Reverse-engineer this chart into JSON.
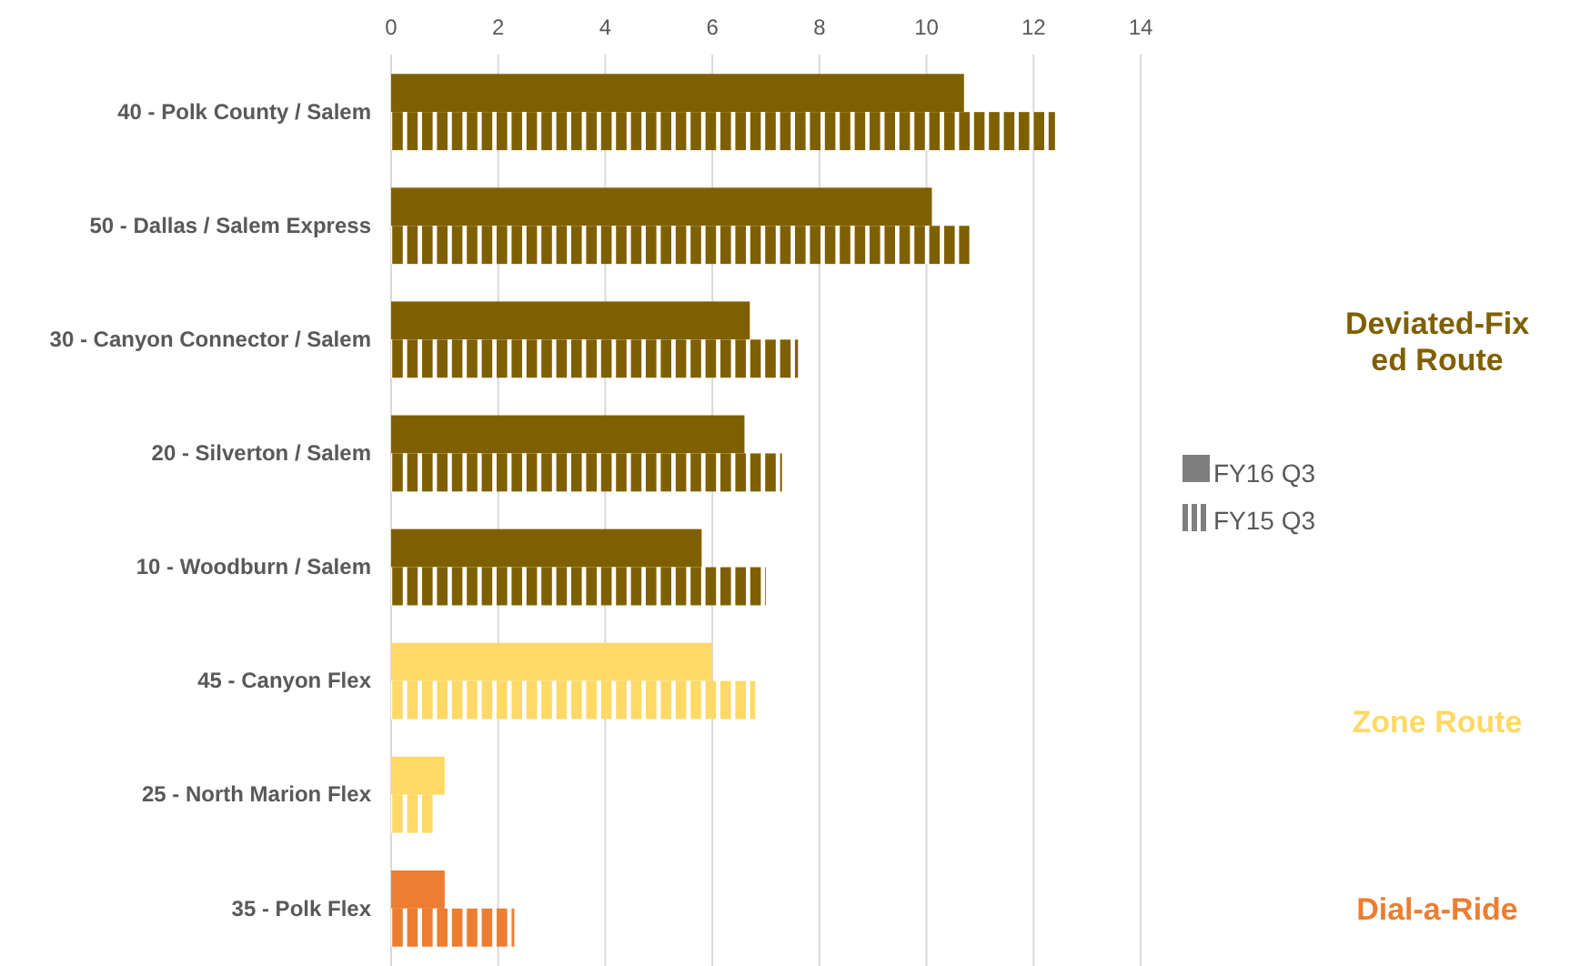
{
  "chart_data": {
    "type": "bar",
    "orientation": "horizontal",
    "categories": [
      "40 - Polk County / Salem",
      "50 - Dallas / Salem Express",
      "30 - Canyon Connector / Salem",
      "20 - Silverton / Salem",
      "10 - Woodburn / Salem",
      "45 - Canyon Flex",
      "25 - North Marion Flex",
      "35 - Polk Flex"
    ],
    "series": [
      {
        "name": "FY16 Q3",
        "color": "#7f7f7f",
        "colors": [
          "#7f6000",
          "#7f6000",
          "#7f6000",
          "#7f6000",
          "#7f6000",
          "#ffd966",
          "#ffd966",
          "#ed7d31"
        ],
        "values": [
          10.7,
          10.1,
          6.7,
          6.6,
          5.8,
          6.0,
          1.0,
          1.0
        ]
      },
      {
        "name": "FY15 Q3",
        "color": "#7f7f7f",
        "colors": [
          "#7f6000",
          "#7f6000",
          "#7f6000",
          "#7f6000",
          "#7f6000",
          "#ffd966",
          "#ffd966",
          "#ed7d31"
        ],
        "values": [
          12.4,
          10.8,
          7.6,
          7.3,
          7.0,
          6.8,
          0.8,
          2.3
        ]
      }
    ],
    "xlim": [
      0,
      14
    ],
    "xticks": [
      0,
      2,
      4,
      6,
      8,
      10,
      12,
      14
    ],
    "grid": "x",
    "legend": "right",
    "annotations": [
      "Deviated-Fixed Route",
      "Zone Route",
      "Dial-a-Ride"
    ]
  }
}
